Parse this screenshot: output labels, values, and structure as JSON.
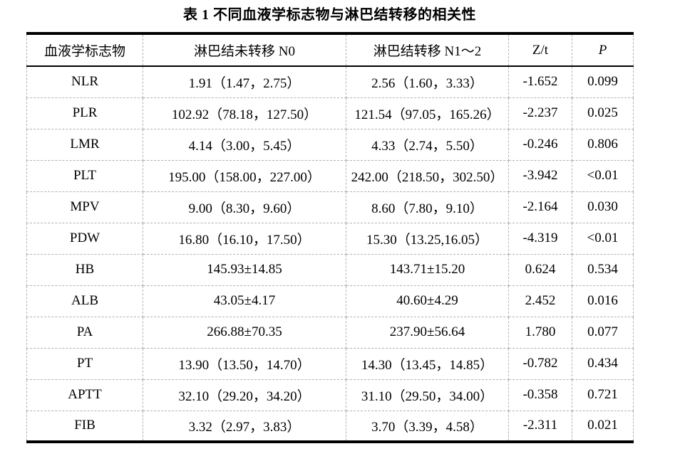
{
  "title": "表 1 不同血液学标志物与淋巴结转移的相关性",
  "table": {
    "columns": [
      "血液学标志物",
      "淋巴结未转移 N0",
      "淋巴结转移 N1～2",
      "Z/t",
      "P"
    ],
    "rows": [
      [
        "NLR",
        "1.91（1.47，2.75）",
        "2.56（1.60，3.33）",
        "-1.652",
        "0.099"
      ],
      [
        "PLR",
        "102.92（78.18，127.50）",
        "121.54（97.05，165.26）",
        "-2.237",
        "0.025"
      ],
      [
        "LMR",
        "4.14（3.00，5.45）",
        "4.33（2.74，5.50）",
        "-0.246",
        "0.806"
      ],
      [
        "PLT",
        "195.00（158.00，227.00）",
        "242.00（218.50，302.50）",
        "-3.942",
        "<0.01"
      ],
      [
        "MPV",
        "9.00（8.30，9.60）",
        "8.60（7.80，9.10）",
        "-2.164",
        "0.030"
      ],
      [
        "PDW",
        "16.80（16.10，17.50）",
        "15.30（13.25,16.05）",
        "-4.319",
        "<0.01"
      ],
      [
        "HB",
        "145.93±14.85",
        "143.71±15.20",
        "0.624",
        "0.534"
      ],
      [
        "ALB",
        "43.05±4.17",
        "40.60±4.29",
        "2.452",
        "0.016"
      ],
      [
        "PA",
        "266.88±70.35",
        "237.90±56.64",
        "1.780",
        "0.077"
      ],
      [
        "PT",
        "13.90（13.50，14.70）",
        "14.30（13.45，14.85）",
        "-0.782",
        "0.434"
      ],
      [
        "APTT",
        "32.10（29.20，34.20）",
        "31.10（29.50，34.00）",
        "-0.358",
        "0.721"
      ],
      [
        "FIB",
        "3.32（2.97，3.83）",
        "3.70（3.39，4.58）",
        "-2.311",
        "0.021"
      ]
    ]
  }
}
